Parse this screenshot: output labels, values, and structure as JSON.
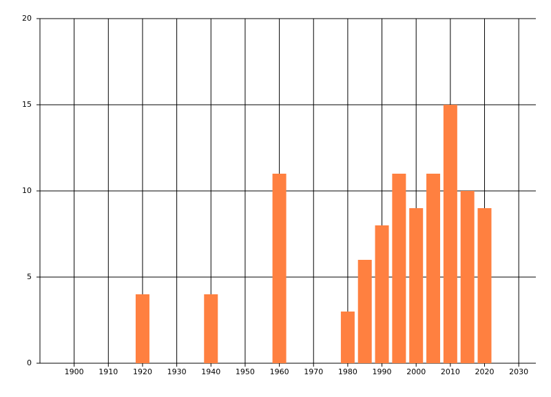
{
  "chart_data": {
    "type": "bar",
    "x": [
      1920,
      1940,
      1960,
      1980,
      1985,
      1990,
      1995,
      2000,
      2005,
      2010,
      2015,
      2020
    ],
    "values": [
      4,
      4,
      11,
      3,
      6,
      8,
      11,
      9,
      11,
      15,
      10,
      9
    ],
    "color": "#ff8040",
    "xlim": [
      1890,
      2035
    ],
    "xticks": [
      1900,
      1910,
      1920,
      1930,
      1940,
      1950,
      1960,
      1970,
      1980,
      1990,
      2000,
      2010,
      2020,
      2030
    ],
    "ylim": [
      0,
      20
    ],
    "yticks": [
      0,
      5,
      10,
      15,
      20
    ],
    "grid": true
  }
}
